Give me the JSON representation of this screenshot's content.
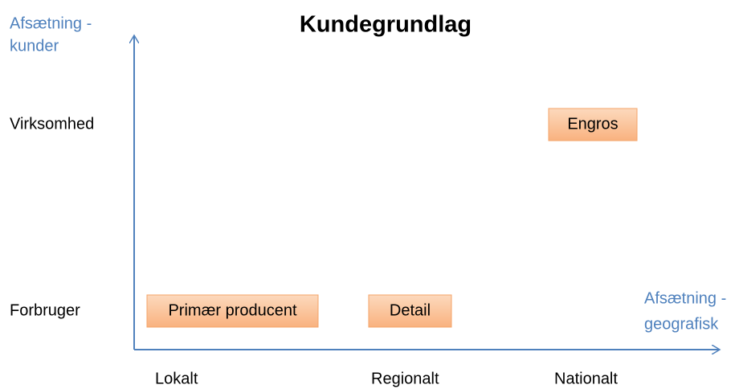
{
  "title": "Kundegrundlag",
  "y_axis": {
    "lines": [
      "Afsætning -",
      "kunder"
    ]
  },
  "x_axis": {
    "lines": [
      "Afsætning -",
      "geografisk"
    ]
  },
  "rows": [
    "Virksomhed",
    "Forbruger"
  ],
  "columns": [
    "Lokalt",
    "Regionalt",
    "Nationalt"
  ],
  "boxes": [
    "Primær producent",
    "Detail",
    "Engros"
  ]
}
